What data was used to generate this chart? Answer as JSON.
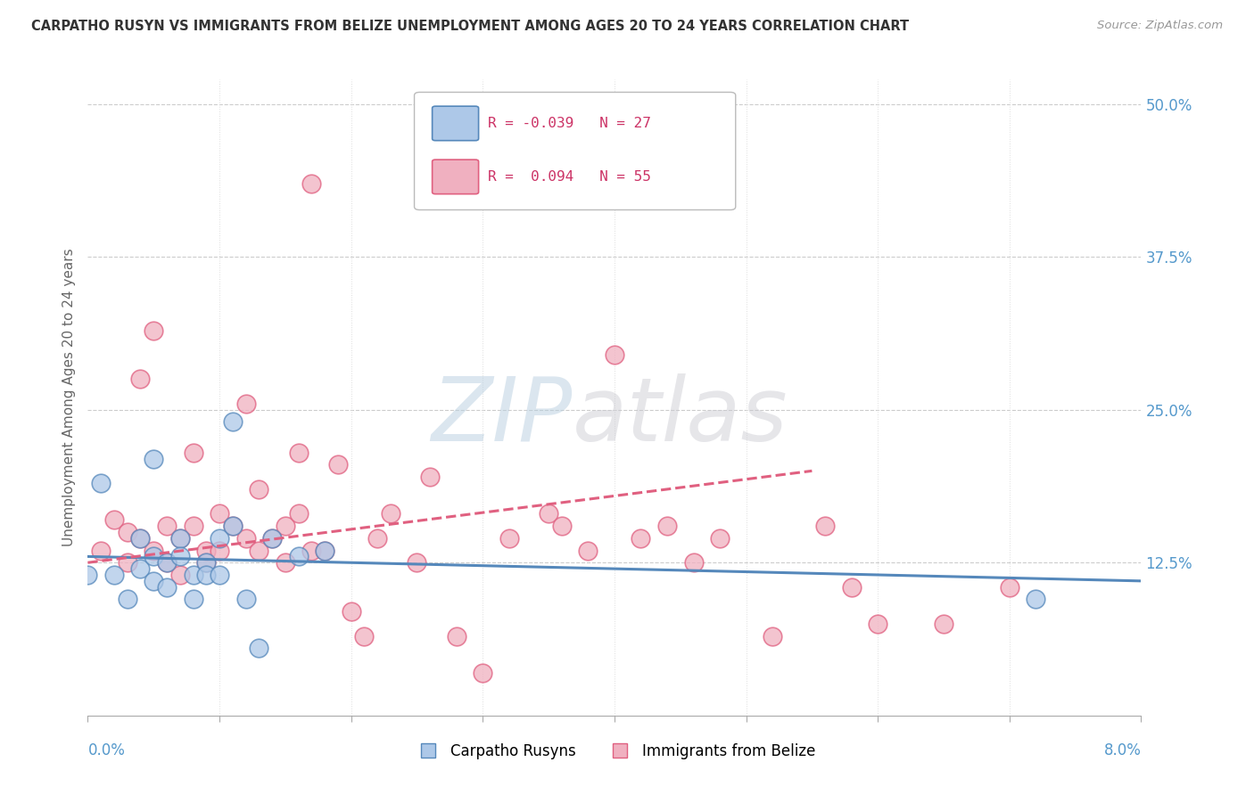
{
  "title": "CARPATHO RUSYN VS IMMIGRANTS FROM BELIZE UNEMPLOYMENT AMONG AGES 20 TO 24 YEARS CORRELATION CHART",
  "source": "Source: ZipAtlas.com",
  "ylabel": "Unemployment Among Ages 20 to 24 years",
  "right_y_ticks": [
    0.0,
    0.125,
    0.25,
    0.375,
    0.5
  ],
  "right_y_tick_labels": [
    "",
    "12.5%",
    "25.0%",
    "37.5%",
    "50.0%"
  ],
  "legend_blue_r": "R = -0.039",
  "legend_blue_n": "N = 27",
  "legend_pink_r": "R =  0.094",
  "legend_pink_n": "N = 55",
  "legend_label_blue": "Carpatho Rusyns",
  "legend_label_pink": "Immigrants from Belize",
  "blue_color": "#adc8e8",
  "blue_edge_color": "#5588bb",
  "blue_line_color": "#5588bb",
  "pink_color": "#f0b0c0",
  "pink_edge_color": "#e06080",
  "pink_line_color": "#e06080",
  "watermark_zip": "ZIP",
  "watermark_atlas": "atlas",
  "blue_scatter_x": [
    0.0,
    0.001,
    0.002,
    0.003,
    0.004,
    0.004,
    0.005,
    0.005,
    0.005,
    0.006,
    0.006,
    0.007,
    0.007,
    0.008,
    0.008,
    0.009,
    0.009,
    0.01,
    0.01,
    0.011,
    0.011,
    0.012,
    0.013,
    0.014,
    0.016,
    0.018,
    0.072
  ],
  "blue_scatter_y": [
    0.115,
    0.19,
    0.115,
    0.095,
    0.12,
    0.145,
    0.11,
    0.13,
    0.21,
    0.105,
    0.125,
    0.145,
    0.13,
    0.095,
    0.115,
    0.125,
    0.115,
    0.115,
    0.145,
    0.24,
    0.155,
    0.095,
    0.055,
    0.145,
    0.13,
    0.135,
    0.095
  ],
  "pink_scatter_x": [
    0.001,
    0.002,
    0.003,
    0.003,
    0.004,
    0.004,
    0.005,
    0.005,
    0.006,
    0.006,
    0.007,
    0.007,
    0.008,
    0.008,
    0.009,
    0.009,
    0.01,
    0.01,
    0.011,
    0.012,
    0.012,
    0.013,
    0.013,
    0.014,
    0.015,
    0.015,
    0.016,
    0.016,
    0.017,
    0.017,
    0.018,
    0.019,
    0.02,
    0.021,
    0.022,
    0.023,
    0.025,
    0.026,
    0.028,
    0.03,
    0.032,
    0.035,
    0.036,
    0.038,
    0.04,
    0.042,
    0.044,
    0.046,
    0.048,
    0.052,
    0.056,
    0.058,
    0.06,
    0.065,
    0.07
  ],
  "pink_scatter_y": [
    0.135,
    0.16,
    0.125,
    0.15,
    0.145,
    0.275,
    0.135,
    0.315,
    0.125,
    0.155,
    0.115,
    0.145,
    0.215,
    0.155,
    0.125,
    0.135,
    0.135,
    0.165,
    0.155,
    0.145,
    0.255,
    0.135,
    0.185,
    0.145,
    0.125,
    0.155,
    0.215,
    0.165,
    0.135,
    0.435,
    0.135,
    0.205,
    0.085,
    0.065,
    0.145,
    0.165,
    0.125,
    0.195,
    0.065,
    0.035,
    0.145,
    0.165,
    0.155,
    0.135,
    0.295,
    0.145,
    0.155,
    0.125,
    0.145,
    0.065,
    0.155,
    0.105,
    0.075,
    0.075,
    0.105
  ],
  "xlim": [
    0.0,
    0.08
  ],
  "ylim": [
    0.0,
    0.52
  ],
  "blue_trend_x": [
    0.0,
    0.08
  ],
  "blue_trend_y": [
    0.13,
    0.11
  ],
  "pink_trend_x": [
    0.0,
    0.055
  ],
  "pink_trend_y": [
    0.125,
    0.2
  ]
}
